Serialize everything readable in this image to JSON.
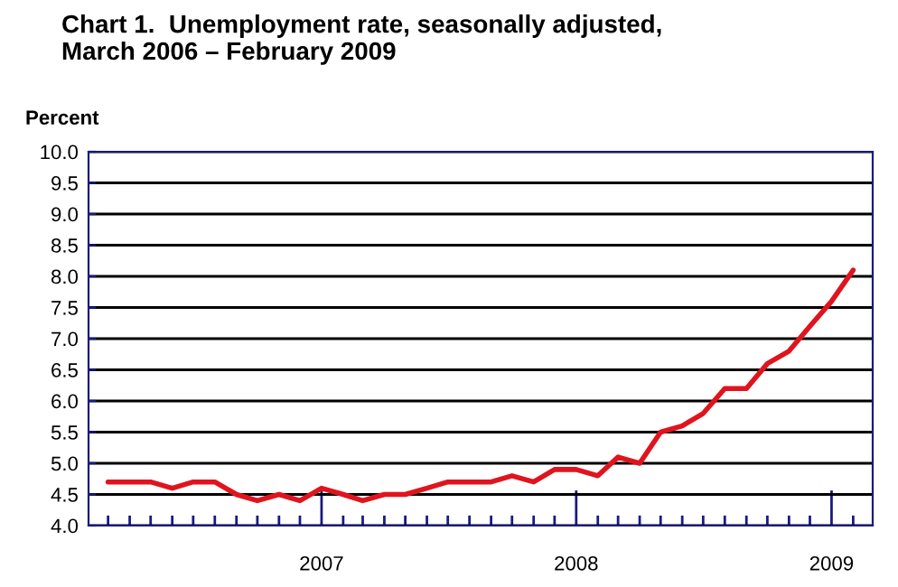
{
  "chart_data": {
    "type": "line",
    "title": "Chart 1.  Unemployment rate, seasonally adjusted,\nMarch 2006 – February 2009",
    "ylabel": "Percent",
    "x": [
      "2006-03",
      "2006-04",
      "2006-05",
      "2006-06",
      "2006-07",
      "2006-08",
      "2006-09",
      "2006-10",
      "2006-11",
      "2006-12",
      "2007-01",
      "2007-02",
      "2007-03",
      "2007-04",
      "2007-05",
      "2007-06",
      "2007-07",
      "2007-08",
      "2007-09",
      "2007-10",
      "2007-11",
      "2007-12",
      "2008-01",
      "2008-02",
      "2008-03",
      "2008-04",
      "2008-05",
      "2008-06",
      "2008-07",
      "2008-08",
      "2008-09",
      "2008-10",
      "2008-11",
      "2008-12",
      "2009-01",
      "2009-02"
    ],
    "series": [
      {
        "color": "#e0141e",
        "values": [
          4.7,
          4.7,
          4.7,
          4.6,
          4.7,
          4.7,
          4.5,
          4.4,
          4.5,
          4.4,
          4.6,
          4.5,
          4.4,
          4.5,
          4.5,
          4.6,
          4.7,
          4.7,
          4.7,
          4.8,
          4.7,
          4.9,
          4.9,
          4.8,
          5.1,
          5.0,
          5.5,
          5.6,
          5.8,
          6.2,
          6.2,
          6.6,
          6.8,
          7.2,
          7.6,
          8.1
        ]
      }
    ],
    "xlim": [
      "2006-02",
      "2009-03"
    ],
    "xticks": [
      {
        "value": "2006-03",
        "label": null
      },
      {
        "value": "2006-04",
        "label": null
      },
      {
        "value": "2006-05",
        "label": null
      },
      {
        "value": "2006-06",
        "label": null
      },
      {
        "value": "2006-07",
        "label": null
      },
      {
        "value": "2006-08",
        "label": null
      },
      {
        "value": "2006-09",
        "label": null
      },
      {
        "value": "2006-10",
        "label": null
      },
      {
        "value": "2006-11",
        "label": null
      },
      {
        "value": "2006-12",
        "label": null
      },
      {
        "value": "2007-01",
        "label": "2007"
      },
      {
        "value": "2007-02",
        "label": null
      },
      {
        "value": "2007-03",
        "label": null
      },
      {
        "value": "2007-04",
        "label": null
      },
      {
        "value": "2007-05",
        "label": null
      },
      {
        "value": "2007-06",
        "label": null
      },
      {
        "value": "2007-07",
        "label": null
      },
      {
        "value": "2007-08",
        "label": null
      },
      {
        "value": "2007-09",
        "label": null
      },
      {
        "value": "2007-10",
        "label": null
      },
      {
        "value": "2007-11",
        "label": null
      },
      {
        "value": "2007-12",
        "label": null
      },
      {
        "value": "2008-01",
        "label": "2008"
      },
      {
        "value": "2008-02",
        "label": null
      },
      {
        "value": "2008-03",
        "label": null
      },
      {
        "value": "2008-04",
        "label": null
      },
      {
        "value": "2008-05",
        "label": null
      },
      {
        "value": "2008-06",
        "label": null
      },
      {
        "value": "2008-07",
        "label": null
      },
      {
        "value": "2008-08",
        "label": null
      },
      {
        "value": "2008-09",
        "label": null
      },
      {
        "value": "2008-10",
        "label": null
      },
      {
        "value": "2008-11",
        "label": null
      },
      {
        "value": "2008-12",
        "label": null
      },
      {
        "value": "2009-01",
        "label": "2009"
      },
      {
        "value": "2009-02",
        "label": null
      }
    ],
    "ylim": [
      4.0,
      10.0
    ],
    "yticks": [
      {
        "value": 4.0,
        "label": "4.0"
      },
      {
        "value": 4.5,
        "label": "4.5"
      },
      {
        "value": 5.0,
        "label": "5.0"
      },
      {
        "value": 5.5,
        "label": "5.5"
      },
      {
        "value": 6.0,
        "label": "6.0"
      },
      {
        "value": 6.5,
        "label": "6.5"
      },
      {
        "value": 7.0,
        "label": "7.0"
      },
      {
        "value": 7.5,
        "label": "7.5"
      },
      {
        "value": 8.0,
        "label": "8.0"
      },
      {
        "value": 8.5,
        "label": "8.5"
      },
      {
        "value": 9.0,
        "label": "9.0"
      },
      {
        "value": 9.5,
        "label": "9.5"
      },
      {
        "value": 10.0,
        "label": "10.0"
      }
    ],
    "grid": "y",
    "marker": "none",
    "line_style": "solid",
    "legend": false
  }
}
